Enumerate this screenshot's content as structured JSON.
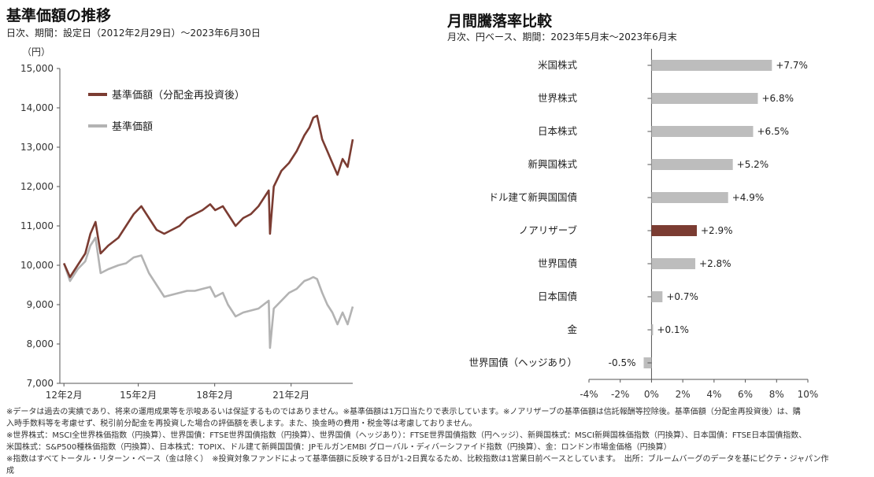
{
  "left_chart": {
    "title": "基準価額の推移",
    "subtitle": "日次、期間：設定日（2012年2月29日）～2023年6月30日",
    "y_unit": "（円）",
    "legend": [
      "基準価額（分配金再投資後）",
      "基準価額"
    ]
  },
  "right_chart": {
    "title": "月間騰落率比較",
    "subtitle": "月次、円ベース、期間：2023年5月末～2023年6月末"
  },
  "notes": [
    "※データは過去の実績であり、将来の運用成果等を示唆あるいは保証するものではありません。※基準価額は1万口当たりで表示しています。※ノアリザーブの基準価額は信託報酬等控除後。基準価額（分配金再投資後）は、購",
    "入時手数料等を考慮せず、税引前分配金を再投資した場合の評価額を表します。また、換金時の費用・税金等は考慮しておりません。",
    "※世界株式：MSCI全世界株価指数（円換算）、世界国債：FTSE世界国債指数（円換算）、世界国債（ヘッジあり）：FTSE世界国債指数（円ヘッジ）、新興国株式：MSCI新興国株価指数（円換算）、日本国債：FTSE日本国債指数、",
    "米国株式：S&P500種株価指数（円換算）、日本株式：TOPIX、ドル建て新興国国債：JPモルガンEMBI グローバル・ディバーシファイド指数（円換算）、金：ロンドン市場金価格（円換算）",
    "※指数はすべてトータル・リターン・ベース（金は除く）　※投資対象ファンドによって基準価額に反映する日が1-2日異なるため、比較指数は1営業日前ベースとしています。　出所：ブルームバーグのデータを基にピクテ・ジャパン作",
    "成"
  ],
  "colors": {
    "reinvested": "#7b3c32",
    "nav": "#b3b3b3",
    "highlight_bar": "#7b3c32",
    "bar": "#bdbdbd"
  },
  "chart_data": [
    {
      "type": "line",
      "title": "基準価額の推移",
      "ylabel": "（円）",
      "x_ticks": [
        "12年2月",
        "15年2月",
        "18年2月",
        "21年2月"
      ],
      "x_tick_years": [
        2012.16,
        2015.08,
        2018.08,
        2021.08
      ],
      "xlim": [
        2012.0,
        2023.5
      ],
      "ylim": [
        7000,
        15000
      ],
      "y_ticks": [
        "7,000",
        "8,000",
        "9,000",
        "10,000",
        "11,000",
        "12,000",
        "13,000",
        "14,000",
        "15,000"
      ],
      "y_tick_values": [
        7000,
        8000,
        9000,
        10000,
        11000,
        12000,
        13000,
        14000,
        15000
      ],
      "legend_position": "top-left",
      "series": [
        {
          "name": "基準価額（分配金再投資後）",
          "color": "#7b3c32",
          "x": [
            2012.16,
            2012.4,
            2012.7,
            2013.0,
            2013.2,
            2013.4,
            2013.6,
            2013.9,
            2014.3,
            2014.6,
            2014.9,
            2015.2,
            2015.5,
            2015.8,
            2016.1,
            2016.4,
            2016.7,
            2017.0,
            2017.3,
            2017.6,
            2017.9,
            2018.1,
            2018.4,
            2018.6,
            2018.9,
            2019.2,
            2019.5,
            2019.8,
            2020.0,
            2020.2,
            2020.25,
            2020.4,
            2020.7,
            2021.0,
            2021.3,
            2021.6,
            2021.8,
            2021.95,
            2022.1,
            2022.3,
            2022.5,
            2022.7,
            2022.9,
            2023.1,
            2023.3,
            2023.5
          ],
          "y": [
            10050,
            9700,
            10000,
            10300,
            10800,
            11100,
            10300,
            10500,
            10700,
            11000,
            11300,
            11500,
            11200,
            10900,
            10800,
            10900,
            11000,
            11200,
            11300,
            11400,
            11550,
            11400,
            11500,
            11300,
            11000,
            11200,
            11300,
            11500,
            11700,
            11900,
            10800,
            12000,
            12400,
            12600,
            12900,
            13300,
            13500,
            13750,
            13800,
            13200,
            12900,
            12600,
            12300,
            12700,
            12500,
            13200
          ]
        },
        {
          "name": "基準価額",
          "color": "#b3b3b3",
          "x": [
            2012.16,
            2012.4,
            2012.7,
            2013.0,
            2013.2,
            2013.4,
            2013.6,
            2013.9,
            2014.3,
            2014.6,
            2014.9,
            2015.2,
            2015.5,
            2015.8,
            2016.1,
            2016.4,
            2016.7,
            2017.0,
            2017.3,
            2017.6,
            2017.9,
            2018.1,
            2018.4,
            2018.6,
            2018.9,
            2019.2,
            2019.5,
            2019.8,
            2020.0,
            2020.2,
            2020.25,
            2020.4,
            2020.7,
            2021.0,
            2021.3,
            2021.6,
            2021.8,
            2021.95,
            2022.1,
            2022.3,
            2022.5,
            2022.7,
            2022.9,
            2023.1,
            2023.3,
            2023.5
          ],
          "y": [
            10050,
            9600,
            9900,
            10100,
            10500,
            10700,
            9800,
            9900,
            10000,
            10050,
            10200,
            10250,
            9800,
            9500,
            9200,
            9250,
            9300,
            9350,
            9350,
            9400,
            9450,
            9200,
            9300,
            9000,
            8700,
            8800,
            8850,
            8900,
            9000,
            9100,
            7900,
            8900,
            9100,
            9300,
            9400,
            9600,
            9650,
            9700,
            9650,
            9300,
            9000,
            8800,
            8500,
            8800,
            8500,
            8950
          ]
        }
      ]
    },
    {
      "type": "bar",
      "orientation": "horizontal",
      "title": "月間騰落率比較",
      "categories": [
        "米国株式",
        "世界株式",
        "日本株式",
        "新興国株式",
        "ドル建て新興国国債",
        "ノアリザーブ",
        "世界国債",
        "日本国債",
        "金",
        "世界国債（ヘッジあり）"
      ],
      "values": [
        7.7,
        6.8,
        6.5,
        5.2,
        4.9,
        2.9,
        2.8,
        0.7,
        0.1,
        -0.5
      ],
      "value_labels": [
        "+7.7%",
        "+6.8%",
        "+6.5%",
        "+5.2%",
        "+4.9%",
        "+2.9%",
        "+2.8%",
        "+0.7%",
        "+0.1%",
        "-0.5%"
      ],
      "highlight": "ノアリザーブ",
      "xlim": [
        -4,
        10
      ],
      "x_ticks": [
        "-4%",
        "-2%",
        "0%",
        "2%",
        "4%",
        "6%",
        "8%",
        "10%"
      ],
      "x_tick_values": [
        -4,
        -2,
        0,
        2,
        4,
        6,
        8,
        10
      ]
    }
  ]
}
